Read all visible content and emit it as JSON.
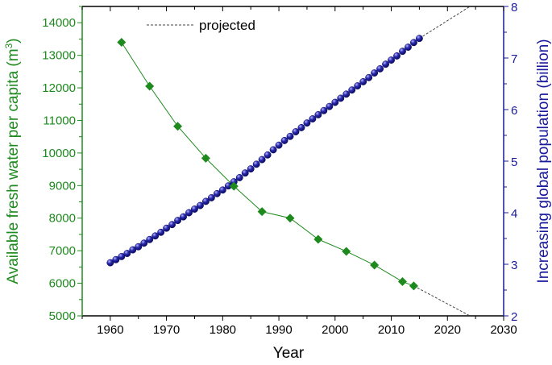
{
  "colors": {
    "water": "#1e8a1e",
    "population": "#1a1a9c",
    "axis": "#000000",
    "projected": "#444444"
  },
  "chart_data": {
    "type": "line",
    "title": "",
    "xlabel": "Year",
    "ylabel_left": "Available fresh water per capita (m³)",
    "ylabel_left_main": "Available fresh water per capita (m",
    "ylabel_left_sup": "3",
    "ylabel_left_end": ")",
    "ylabel_right": "Increasing global population (billion)",
    "xlim": [
      1955,
      2030
    ],
    "ylim_left": [
      5000,
      14500
    ],
    "ylim_right": [
      2,
      8
    ],
    "xticks": [
      1960,
      1970,
      1980,
      1990,
      2000,
      2010,
      2020,
      2030
    ],
    "yticks_left": [
      5000,
      6000,
      7000,
      8000,
      9000,
      10000,
      11000,
      12000,
      13000,
      14000
    ],
    "yticks_right": [
      2,
      3,
      4,
      5,
      6,
      7,
      8
    ],
    "legend": {
      "label": "projected",
      "position": "top-left"
    },
    "series": [
      {
        "name": "Fresh water per capita",
        "axis": "left",
        "marker": "diamond",
        "x": [
          1962,
          1967,
          1972,
          1977,
          1982,
          1987,
          1992,
          1997,
          2002,
          2007,
          2012,
          2014
        ],
        "y": [
          13400,
          12050,
          10820,
          9840,
          8980,
          8200,
          8000,
          7350,
          6980,
          6560,
          6050,
          5920
        ],
        "projected": {
          "x": [
            2014,
            2024
          ],
          "y": [
            5920,
            5000
          ]
        }
      },
      {
        "name": "Global population",
        "axis": "right",
        "marker": "sphere",
        "x_start": 1960,
        "x_step": 1,
        "y": [
          3.03,
          3.09,
          3.15,
          3.21,
          3.28,
          3.34,
          3.41,
          3.48,
          3.55,
          3.62,
          3.7,
          3.77,
          3.85,
          3.92,
          4.0,
          4.07,
          4.14,
          4.22,
          4.29,
          4.37,
          4.44,
          4.52,
          4.6,
          4.68,
          4.77,
          4.85,
          4.94,
          5.03,
          5.12,
          5.22,
          5.31,
          5.4,
          5.48,
          5.57,
          5.65,
          5.74,
          5.82,
          5.9,
          5.98,
          6.06,
          6.14,
          6.22,
          6.3,
          6.38,
          6.46,
          6.54,
          6.62,
          6.71,
          6.79,
          6.88,
          6.96,
          7.04,
          7.13,
          7.21,
          7.3,
          7.38
        ],
        "projected": {
          "x": [
            2015,
            2024
          ],
          "y": [
            7.38,
            8.0
          ]
        }
      }
    ]
  }
}
